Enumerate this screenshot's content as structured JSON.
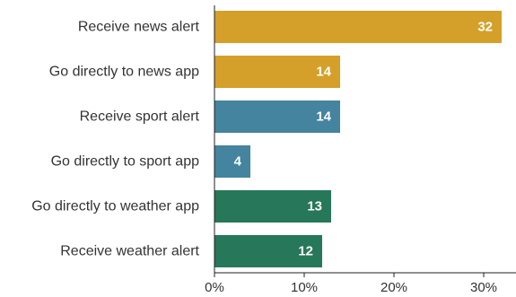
{
  "chart_data": {
    "type": "bar",
    "orientation": "horizontal",
    "categories": [
      "Receive news alert",
      "Go directly to news app",
      "Receive sport alert",
      "Go directly to sport app",
      "Go directly to weather app",
      "Receive weather alert"
    ],
    "values": [
      32,
      14,
      14,
      4,
      13,
      12
    ],
    "data_labels": [
      "32",
      "14",
      "14",
      "4",
      "13",
      "12"
    ],
    "bar_colors": [
      "#D4A02A",
      "#D4A02A",
      "#44849E",
      "#44849E",
      "#27775A",
      "#27775A"
    ],
    "xlim": [
      0,
      34
    ],
    "xticks": [
      0,
      10,
      20,
      30
    ],
    "xtick_labels": [
      "0%",
      "10%",
      "20%",
      "30%"
    ],
    "grid": false,
    "title": "",
    "xlabel": "",
    "ylabel": ""
  }
}
